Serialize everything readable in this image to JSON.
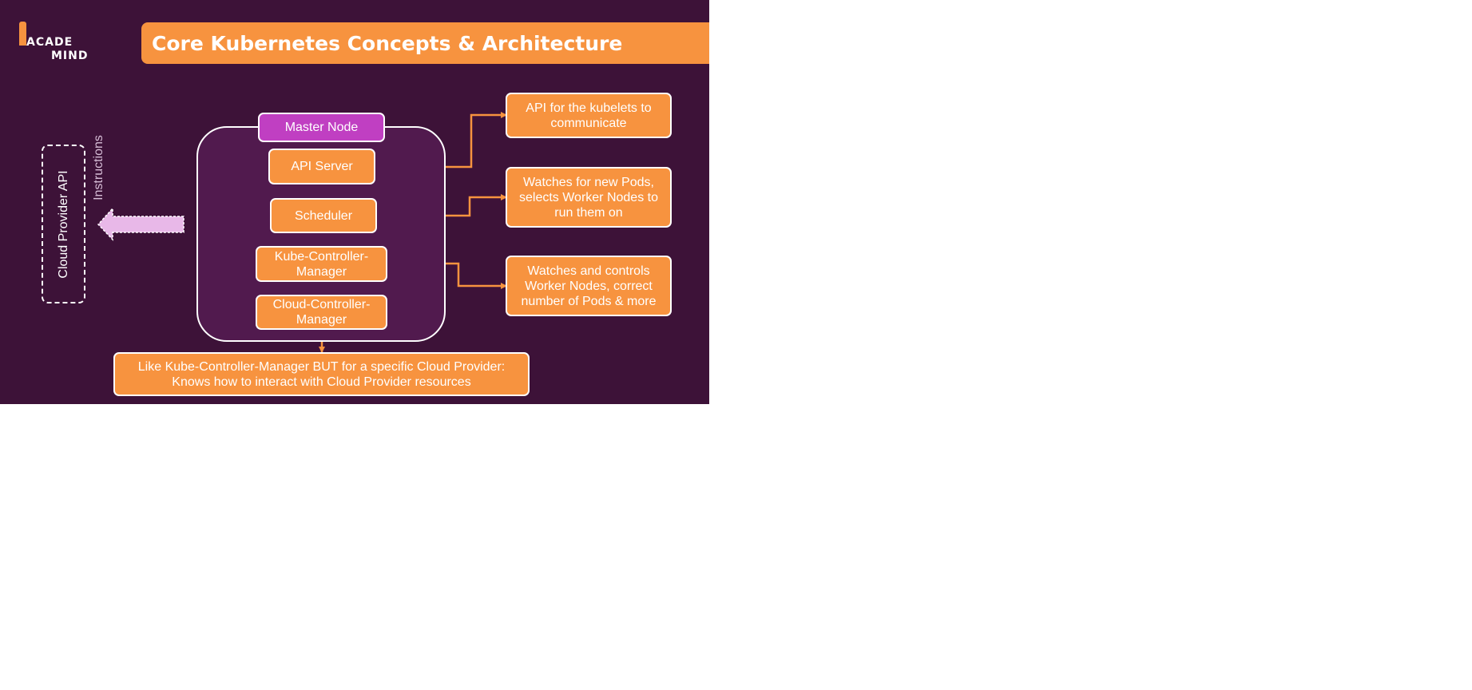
{
  "slide": {
    "logo": {
      "line1": "ACADE",
      "line2": "MIND"
    },
    "title": "Core Kubernetes Concepts & Architecture"
  },
  "diagram": {
    "master_node": "Master Node",
    "components": {
      "api_server": "API Server",
      "scheduler": "Scheduler",
      "kube_controller_manager": "Kube-Controller-Manager",
      "cloud_controller_manager": "Cloud-Controller-Manager"
    },
    "descriptions": {
      "api_server": "API for the kubelets to communicate",
      "scheduler": "Watches for new Pods, selects Worker Nodes to run them on",
      "kube_controller_manager": "Watches and controls Worker Nodes, correct number of Pods & more",
      "cloud_controller_manager": "Like Kube-Controller-Manager BUT for a specific Cloud Provider: Knows how to interact with Cloud Provider resources"
    },
    "cloud_provider_api": "Cloud Provider API",
    "instructions_label": "Instructions"
  },
  "colors": {
    "background": "#3d1238",
    "accent": "#f7933f",
    "master_fill": "#511a4e",
    "master_label": "#c03fc2",
    "arrow": "#e8b8e8"
  }
}
